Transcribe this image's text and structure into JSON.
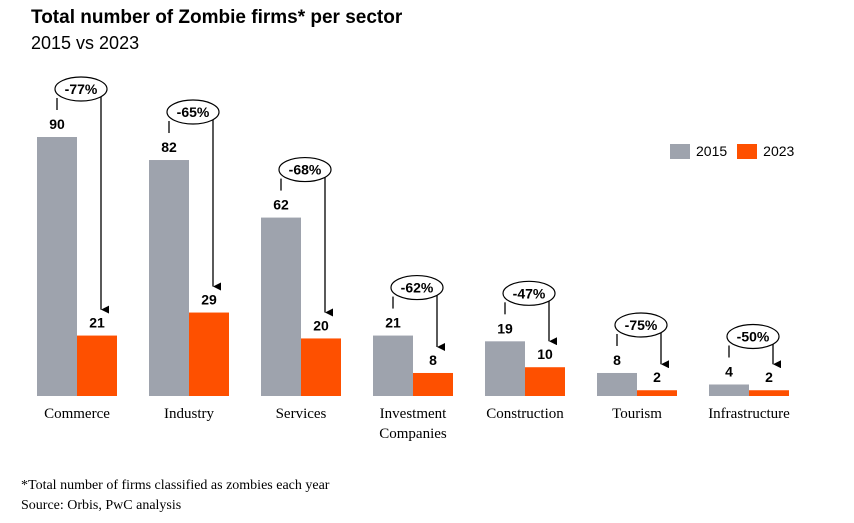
{
  "title": "Total number of Zombie firms* per sector",
  "subtitle": "2015 vs 2023",
  "footnote": "*Total number of firms classified as zombies each year",
  "source": "Source: Orbis, PwC analysis",
  "colors": {
    "s2015": "#9ea3ad",
    "s2023": "#fe5000"
  },
  "chart_data": {
    "type": "bar",
    "title": "Total number of Zombie firms* per sector",
    "subtitle": "2015 vs 2023",
    "xlabel": "",
    "ylabel": "",
    "ylim": [
      0,
      90
    ],
    "grid": false,
    "legend_position": "top-right",
    "categories": [
      [
        "Commerce"
      ],
      [
        "Industry"
      ],
      [
        "Services"
      ],
      [
        "Investment",
        "Companies"
      ],
      [
        "Construction"
      ],
      [
        "Tourism"
      ],
      [
        "Infrastructure"
      ]
    ],
    "series": [
      {
        "name": "2015",
        "values": [
          90,
          82,
          62,
          21,
          19,
          8,
          4
        ]
      },
      {
        "name": "2023",
        "values": [
          21,
          29,
          20,
          8,
          10,
          2,
          2
        ]
      }
    ],
    "annotations": [
      "-77%",
      "-65%",
      "-68%",
      "-62%",
      "-47%",
      "-75%",
      "-50%"
    ]
  }
}
